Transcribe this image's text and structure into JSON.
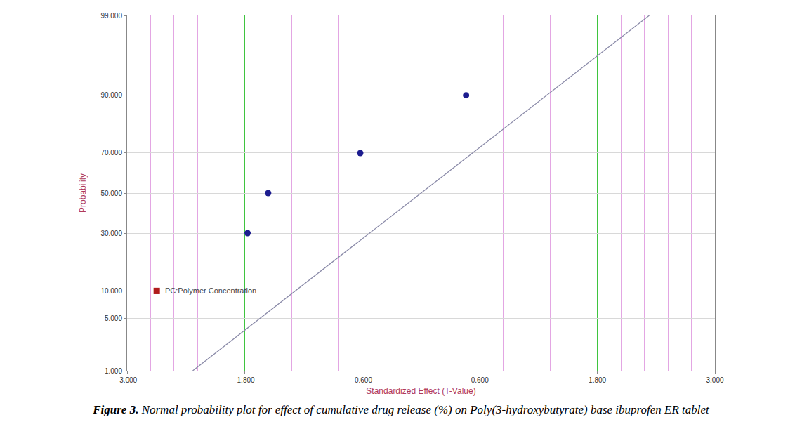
{
  "chart_data": {
    "type": "normal_probability",
    "x_label": "Standardized Effect (T-Value)",
    "y_label": "Probability",
    "xlim": [
      -3,
      3
    ],
    "xticks": [
      {
        "value": -3,
        "label": "-3.000"
      },
      {
        "value": -1.8,
        "label": "-1.800"
      },
      {
        "value": -0.6,
        "label": "-0.600"
      },
      {
        "value": 0.6,
        "label": "0.600"
      },
      {
        "value": 1.8,
        "label": "1.800"
      },
      {
        "value": 3,
        "label": "3.000"
      }
    ],
    "ylim": [
      1,
      99
    ],
    "yticks": [
      {
        "value": 1,
        "label": "1.000"
      },
      {
        "value": 5,
        "label": "5.000"
      },
      {
        "value": 10,
        "label": "10.000"
      },
      {
        "value": 30,
        "label": "30.000"
      },
      {
        "value": 50,
        "label": "50.000"
      },
      {
        "value": 70,
        "label": "70.000"
      },
      {
        "value": 90,
        "label": "90.000"
      },
      {
        "value": 99,
        "label": "99.000"
      }
    ],
    "grid": true,
    "series": [
      {
        "type": "scatter",
        "marker": "circle",
        "color": "#1c1c8f",
        "x": [
          -1.77,
          -1.56,
          -0.62,
          0.46
        ],
        "values": [
          30,
          50,
          70,
          90
        ]
      },
      {
        "type": "line",
        "color": "#8a8aa8",
        "x": [
          -2.33,
          2.33
        ],
        "values": [
          1,
          99
        ]
      }
    ],
    "annotations": [
      "PC:Polymer Concentration"
    ],
    "caption": {
      "label": "Figure 3.",
      "text": "Normal probability plot for effect of cumulative drug release (%) on Poly(3-hydroxybutyrate) base ibuprofen ER tablet"
    }
  }
}
